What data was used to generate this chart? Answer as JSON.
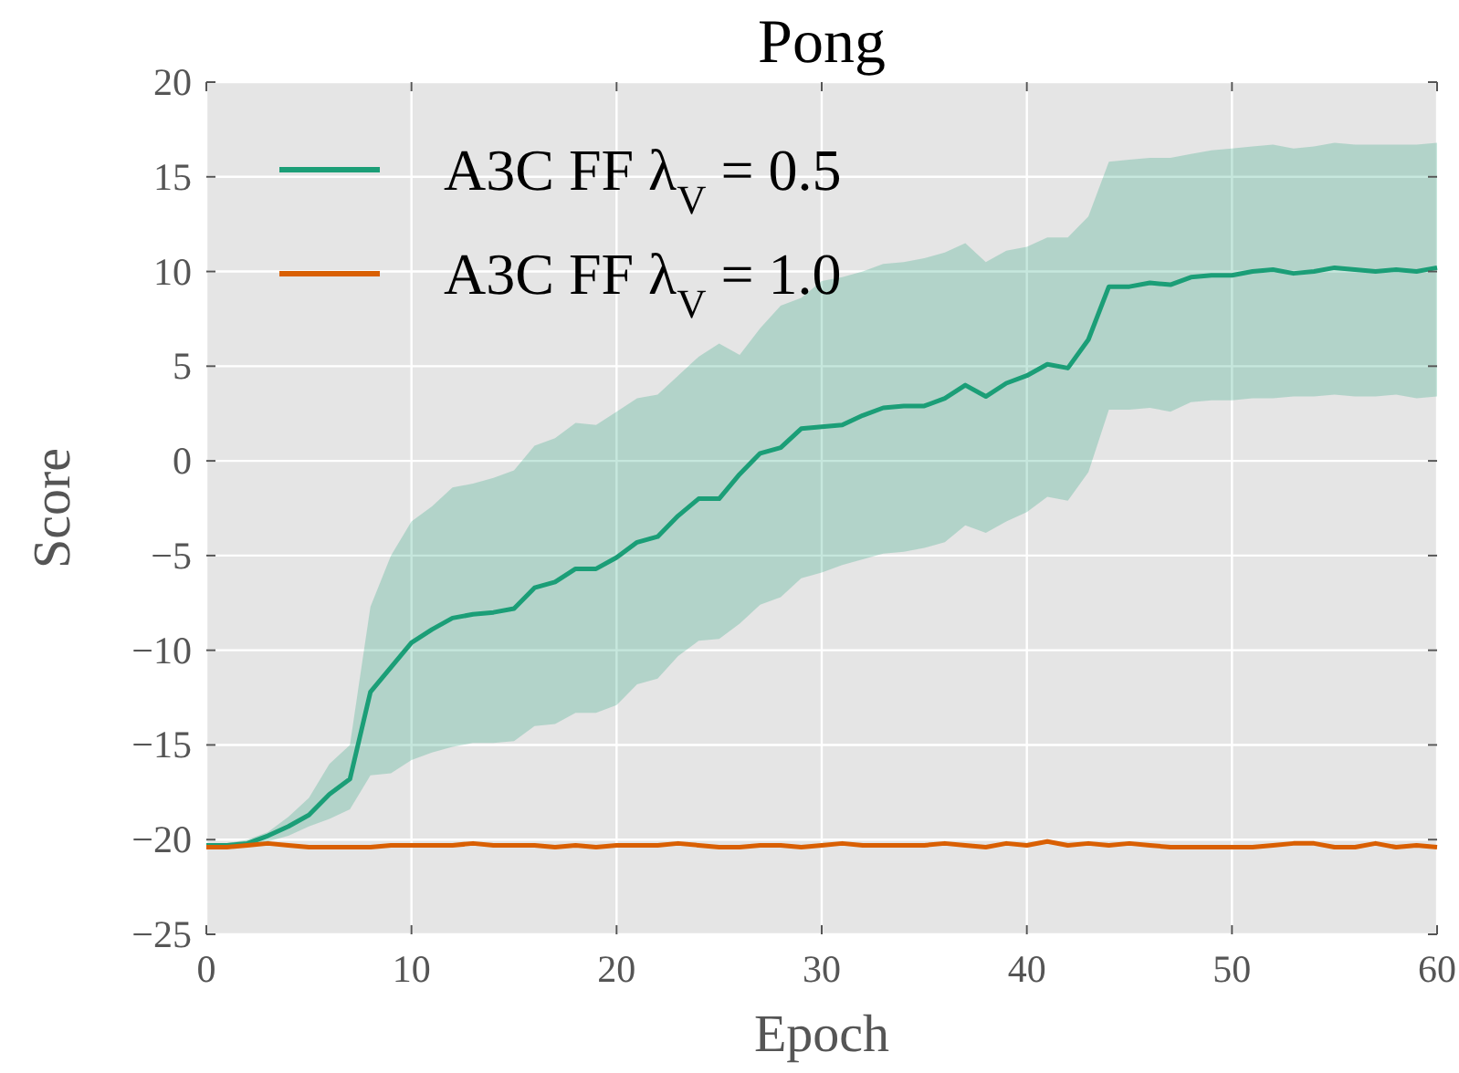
{
  "chart_data": {
    "type": "line",
    "title": "Pong",
    "xlabel": "Epoch",
    "ylabel": "Score",
    "x": [
      0,
      1,
      2,
      3,
      4,
      5,
      6,
      7,
      8,
      9,
      10,
      11,
      12,
      13,
      14,
      15,
      16,
      17,
      18,
      19,
      20,
      21,
      22,
      23,
      24,
      25,
      26,
      27,
      28,
      29,
      30,
      31,
      32,
      33,
      34,
      35,
      36,
      37,
      38,
      39,
      40,
      41,
      42,
      43,
      44,
      45,
      46,
      47,
      48,
      49,
      50,
      51,
      52,
      53,
      54,
      55,
      56,
      57,
      58,
      59,
      60
    ],
    "series": [
      {
        "name": "A3C FF λ$_{V}$ = 0.5",
        "color": "#1b9e77",
        "values": [
          -20.3,
          -20.3,
          -20.2,
          -19.8,
          -19.3,
          -18.7,
          -17.6,
          -16.8,
          -12.2,
          -10.9,
          -9.6,
          -8.9,
          -8.3,
          -8.1,
          -8.0,
          -7.8,
          -6.7,
          -6.4,
          -5.7,
          -5.7,
          -5.1,
          -4.3,
          -4.0,
          -2.9,
          -2.0,
          -2.0,
          -0.7,
          0.4,
          0.7,
          1.7,
          1.8,
          1.9,
          2.4,
          2.8,
          2.9,
          2.9,
          3.3,
          4.0,
          3.4,
          4.1,
          4.5,
          5.1,
          4.9,
          6.4,
          9.2,
          9.2,
          9.4,
          9.3,
          9.7,
          9.8,
          9.8,
          10.0,
          10.1,
          9.9,
          10.0,
          10.2,
          10.1,
          10.0,
          10.1,
          10.0,
          10.2
        ],
        "lower": [
          -20.3,
          -20.3,
          -20.3,
          -20.1,
          -19.8,
          -19.3,
          -18.9,
          -18.4,
          -16.6,
          -16.5,
          -15.8,
          -15.4,
          -15.1,
          -14.9,
          -14.9,
          -14.8,
          -14.0,
          -13.9,
          -13.3,
          -13.3,
          -12.9,
          -11.8,
          -11.5,
          -10.3,
          -9.5,
          -9.4,
          -8.6,
          -7.6,
          -7.2,
          -6.2,
          -5.9,
          -5.5,
          -5.2,
          -4.9,
          -4.8,
          -4.6,
          -4.3,
          -3.4,
          -3.8,
          -3.2,
          -2.7,
          -1.9,
          -2.1,
          -0.6,
          2.7,
          2.7,
          2.8,
          2.6,
          3.1,
          3.2,
          3.2,
          3.3,
          3.3,
          3.4,
          3.4,
          3.5,
          3.4,
          3.4,
          3.5,
          3.3,
          3.4
        ],
        "upper": [
          -20.3,
          -20.2,
          -20.0,
          -19.6,
          -18.8,
          -17.8,
          -16.0,
          -15.0,
          -7.7,
          -5.0,
          -3.2,
          -2.4,
          -1.4,
          -1.2,
          -0.9,
          -0.5,
          0.8,
          1.2,
          2.0,
          1.9,
          2.6,
          3.3,
          3.5,
          4.5,
          5.5,
          6.2,
          5.6,
          7.0,
          8.2,
          8.6,
          9.5,
          9.7,
          10.0,
          10.4,
          10.5,
          10.7,
          11.0,
          11.5,
          10.5,
          11.1,
          11.3,
          11.8,
          11.8,
          12.9,
          15.8,
          15.9,
          16.0,
          16.0,
          16.2,
          16.4,
          16.5,
          16.6,
          16.7,
          16.5,
          16.6,
          16.8,
          16.7,
          16.7,
          16.7,
          16.7,
          16.8
        ]
      },
      {
        "name": "A3C FF λ$_{V}$ = 1.0",
        "color": "#d95f02",
        "values": [
          -20.4,
          -20.4,
          -20.3,
          -20.2,
          -20.3,
          -20.4,
          -20.4,
          -20.4,
          -20.4,
          -20.3,
          -20.3,
          -20.3,
          -20.3,
          -20.2,
          -20.3,
          -20.3,
          -20.3,
          -20.4,
          -20.3,
          -20.4,
          -20.3,
          -20.3,
          -20.3,
          -20.2,
          -20.3,
          -20.4,
          -20.4,
          -20.3,
          -20.3,
          -20.4,
          -20.3,
          -20.2,
          -20.3,
          -20.3,
          -20.3,
          -20.3,
          -20.2,
          -20.3,
          -20.4,
          -20.2,
          -20.3,
          -20.1,
          -20.3,
          -20.2,
          -20.3,
          -20.2,
          -20.3,
          -20.4,
          -20.4,
          -20.4,
          -20.4,
          -20.4,
          -20.3,
          -20.2,
          -20.2,
          -20.4,
          -20.4,
          -20.2,
          -20.4,
          -20.3,
          -20.4
        ]
      }
    ],
    "xlim": [
      0,
      60
    ],
    "xticks": [
      0,
      10,
      20,
      30,
      40,
      50,
      60
    ],
    "ylim": [
      -25,
      20
    ],
    "yticks": [
      -25,
      -20,
      -15,
      -10,
      -5,
      0,
      5,
      10,
      15,
      20
    ],
    "grid": true,
    "legend": "top left",
    "line_style": "solid",
    "marker": "none"
  }
}
